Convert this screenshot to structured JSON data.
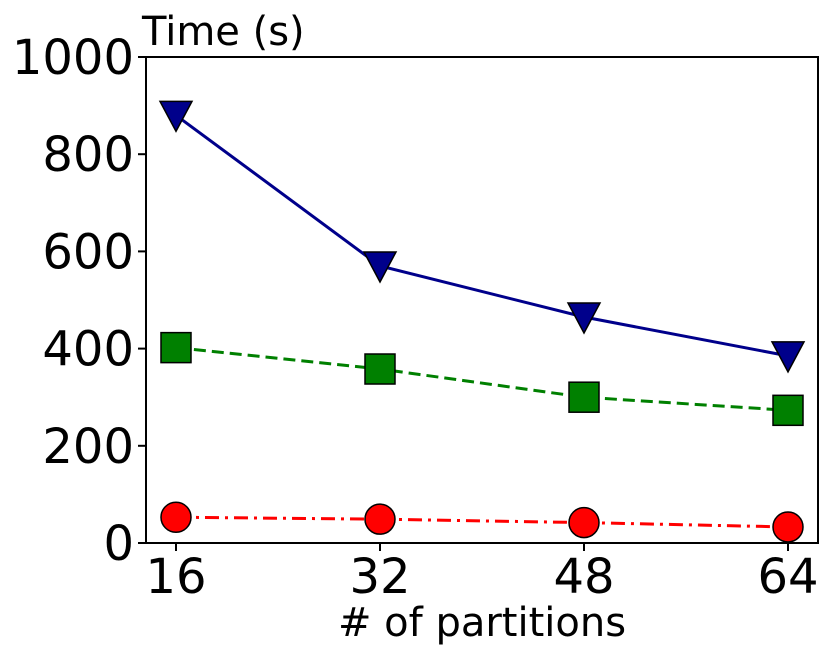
{
  "chart_data": {
    "type": "line",
    "title": "",
    "xlabel": "# of partitions",
    "ylabel": "Time (s)",
    "categories": [
      "16",
      "32",
      "48",
      "64"
    ],
    "ylim": [
      0,
      1000
    ],
    "yticks": [
      "0",
      "200",
      "400",
      "600",
      "800",
      "1000"
    ],
    "grid": false,
    "series": [
      {
        "values": [
          880,
          570,
          465,
          385
        ],
        "color": "#00008b",
        "marker": "triangle-down",
        "line_style": "solid"
      },
      {
        "values": [
          402,
          358,
          300,
          273
        ],
        "color": "#008000",
        "marker": "square",
        "line_style": "dashed"
      },
      {
        "values": [
          53,
          49,
          42,
          33
        ],
        "color": "#ff0000",
        "marker": "circle",
        "line_style": "dash-dot"
      }
    ]
  }
}
